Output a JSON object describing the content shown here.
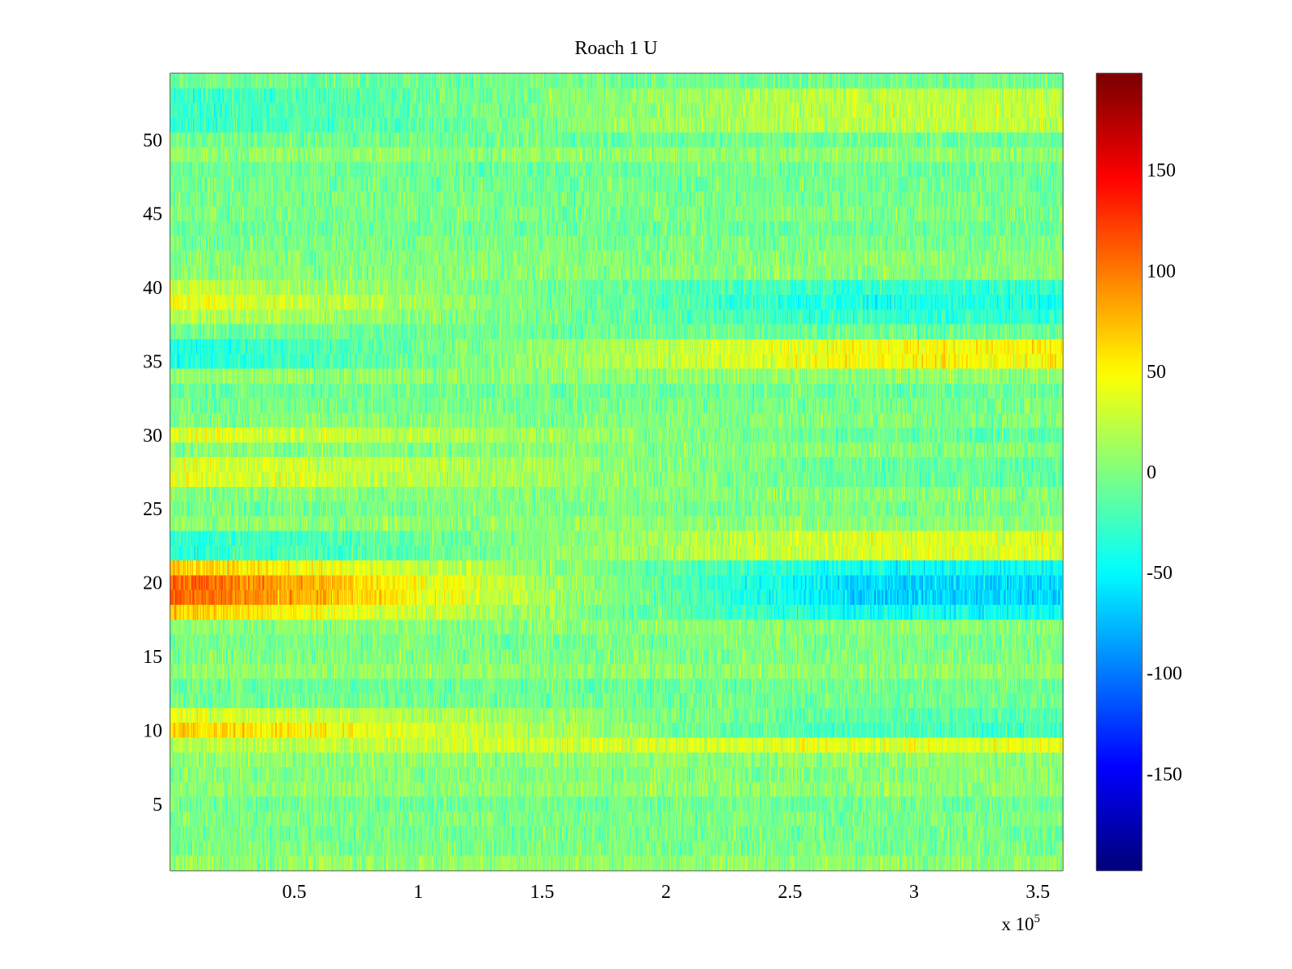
{
  "chart_data": {
    "type": "heatmap",
    "title": "Roach 1 U",
    "xlabel": "",
    "ylabel": "",
    "x_exponent_label": "x 10",
    "x_exponent_power": "5",
    "xlim": [
      0,
      3.6
    ],
    "ylim": [
      0.5,
      54.5
    ],
    "x_ticks": [
      0.5,
      1,
      1.5,
      2,
      2.5,
      3,
      3.5
    ],
    "x_tick_labels": [
      "0.5",
      "1",
      "1.5",
      "2",
      "2.5",
      "3",
      "3.5"
    ],
    "y_ticks": [
      5,
      10,
      15,
      20,
      25,
      30,
      35,
      40,
      45,
      50
    ],
    "y_tick_labels": [
      "5",
      "10",
      "15",
      "20",
      "25",
      "30",
      "35",
      "40",
      "45",
      "50"
    ],
    "rows": 54,
    "colormap": "jet",
    "clim": [
      -198,
      198
    ],
    "colorbar_ticks": [
      -150,
      -100,
      -50,
      0,
      50,
      100,
      150
    ],
    "colorbar_tick_labels": [
      "-150",
      "-100",
      "-50",
      "0",
      "50",
      "100",
      "150"
    ],
    "grid": false,
    "row_trends": [
      {
        "rows": [
          19,
          20
        ],
        "start_value": 115,
        "end_value": -65
      },
      {
        "rows": [
          18,
          21
        ],
        "start_value": 70,
        "end_value": -45
      },
      {
        "rows": [
          10
        ],
        "start_value": 70,
        "end_value": -25
      },
      {
        "rows": [
          11
        ],
        "start_value": 40,
        "end_value": -15
      },
      {
        "rows": [
          9
        ],
        "start_value": 20,
        "end_value": 40
      },
      {
        "rows": [
          39
        ],
        "start_value": 45,
        "end_value": -40
      },
      {
        "rows": [
          38,
          40
        ],
        "start_value": 25,
        "end_value": -30
      },
      {
        "rows": [
          35,
          36
        ],
        "start_value": -40,
        "end_value": 50
      },
      {
        "rows": [
          27,
          28,
          30
        ],
        "start_value": 40,
        "end_value": -10
      },
      {
        "rows": [
          22,
          23
        ],
        "start_value": -35,
        "end_value": 35
      },
      {
        "rows": [
          51,
          52,
          53
        ],
        "start_value": -30,
        "end_value": 25
      }
    ]
  }
}
